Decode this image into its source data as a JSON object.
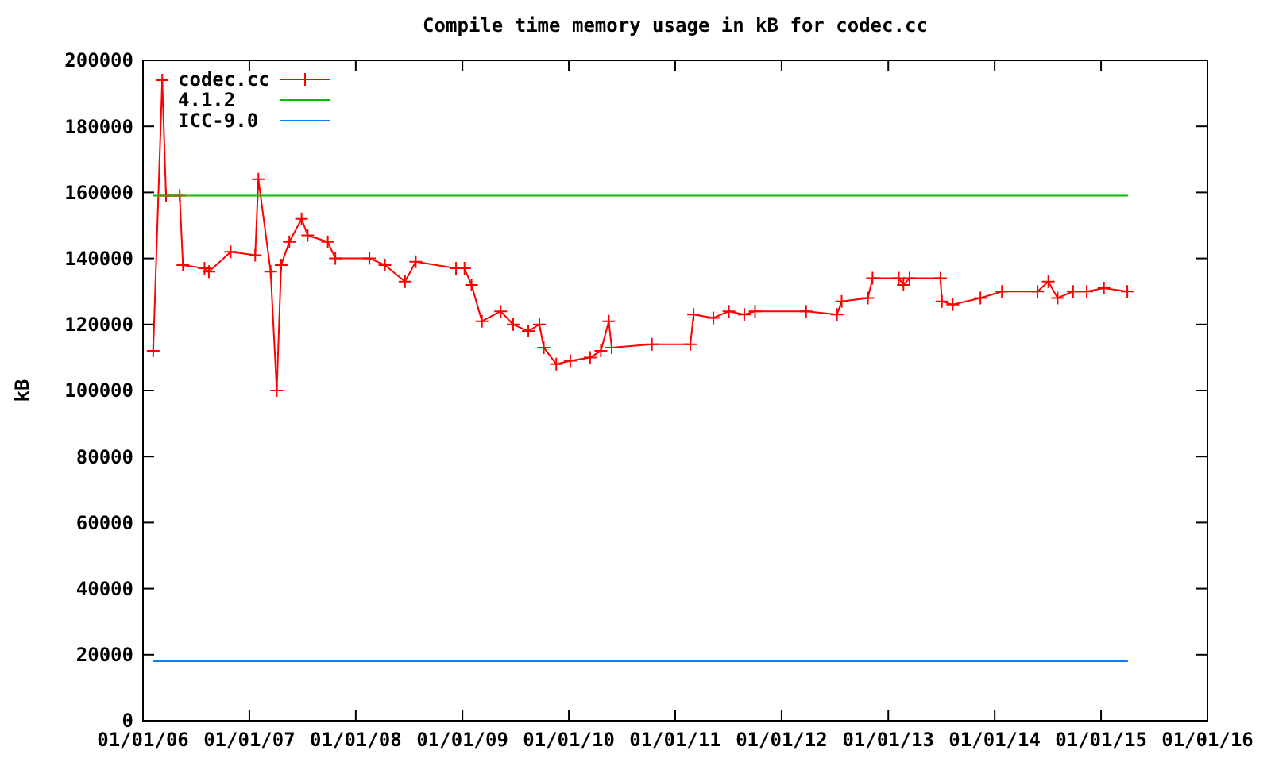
{
  "chart_data": {
    "type": "line",
    "title": "Compile time memory usage in kB for codec.cc",
    "ylabel": "kB",
    "xlim": [
      "2006-01-01",
      "2016-01-01"
    ],
    "xticks": [
      {
        "value": "2006-01-01",
        "label": "01/01/06"
      },
      {
        "value": "2007-01-01",
        "label": "01/01/07"
      },
      {
        "value": "2008-01-01",
        "label": "01/01/08"
      },
      {
        "value": "2009-01-01",
        "label": "01/01/09"
      },
      {
        "value": "2010-01-01",
        "label": "01/01/10"
      },
      {
        "value": "2011-01-01",
        "label": "01/01/11"
      },
      {
        "value": "2012-01-01",
        "label": "01/01/12"
      },
      {
        "value": "2013-01-01",
        "label": "01/01/13"
      },
      {
        "value": "2014-01-01",
        "label": "01/01/14"
      },
      {
        "value": "2015-01-01",
        "label": "01/01/15"
      },
      {
        "value": "2016-01-01",
        "label": "01/01/16"
      }
    ],
    "ylim": [
      0,
      200000
    ],
    "yticks": [
      0,
      20000,
      40000,
      60000,
      80000,
      100000,
      120000,
      140000,
      160000,
      180000,
      200000
    ],
    "grid": false,
    "legend": "top left",
    "line_style": "solid",
    "series": [
      {
        "name": "codec.cc",
        "color": "#ff0000",
        "marker": "cross",
        "x": [
          "2006-02-05",
          "2006-03-08",
          "2006-03-21",
          "2006-05-07",
          "2006-05-18",
          "2006-07-31",
          "2006-08-15",
          "2006-10-29",
          "2007-01-21",
          "2007-02-01",
          "2007-03-15",
          "2007-04-05",
          "2007-04-20",
          "2007-05-18",
          "2007-06-29",
          "2007-07-20",
          "2007-09-27",
          "2007-10-23",
          "2008-02-17",
          "2008-04-10",
          "2008-06-18",
          "2008-07-25",
          "2008-12-10",
          "2009-01-08",
          "2009-02-01",
          "2009-03-09",
          "2009-05-12",
          "2009-06-24",
          "2009-08-15",
          "2009-09-22",
          "2009-10-07",
          "2009-11-19",
          "2010-01-06",
          "2010-03-15",
          "2010-04-21",
          "2010-05-18",
          "2010-05-28",
          "2010-10-13",
          "2011-02-22",
          "2011-03-05",
          "2011-05-12",
          "2011-07-04",
          "2011-08-26",
          "2011-10-02",
          "2012-03-25",
          "2012-07-09",
          "2012-07-25",
          "2012-10-23",
          "2012-11-08",
          "2013-02-06",
          "2013-02-22",
          "2013-03-15",
          "2013-06-29",
          "2013-07-04",
          "2013-08-10",
          "2013-11-13",
          "2014-01-26",
          "2014-05-28",
          "2014-07-04",
          "2014-08-05",
          "2014-09-27",
          "2014-11-13",
          "2015-01-11",
          "2015-04-01"
        ],
        "values": [
          112000,
          194000,
          159000,
          159000,
          138000,
          137000,
          136000,
          142000,
          141000,
          164000,
          136000,
          100000,
          138000,
          145000,
          152000,
          147000,
          145000,
          140000,
          140000,
          138000,
          133000,
          139000,
          137000,
          137000,
          132000,
          121000,
          124000,
          120000,
          118000,
          120000,
          113000,
          108000,
          109000,
          110000,
          112000,
          121000,
          113000,
          114000,
          114000,
          123000,
          122000,
          124000,
          123000,
          124000,
          124000,
          123000,
          127000,
          128000,
          134000,
          134000,
          132000,
          134000,
          134000,
          127000,
          126000,
          128000,
          130000,
          130000,
          133000,
          128000,
          130000,
          130000,
          131000,
          130000
        ]
      },
      {
        "name": "4.1.2",
        "color": "#00c000",
        "marker": "none",
        "x": [
          "2006-02-06",
          "2015-04-01"
        ],
        "values": [
          159000,
          159000
        ]
      },
      {
        "name": "ICC-9.0",
        "color": "#0080ff",
        "marker": "none",
        "x": [
          "2006-02-06",
          "2015-04-01"
        ],
        "values": [
          18000,
          18000
        ]
      }
    ]
  }
}
